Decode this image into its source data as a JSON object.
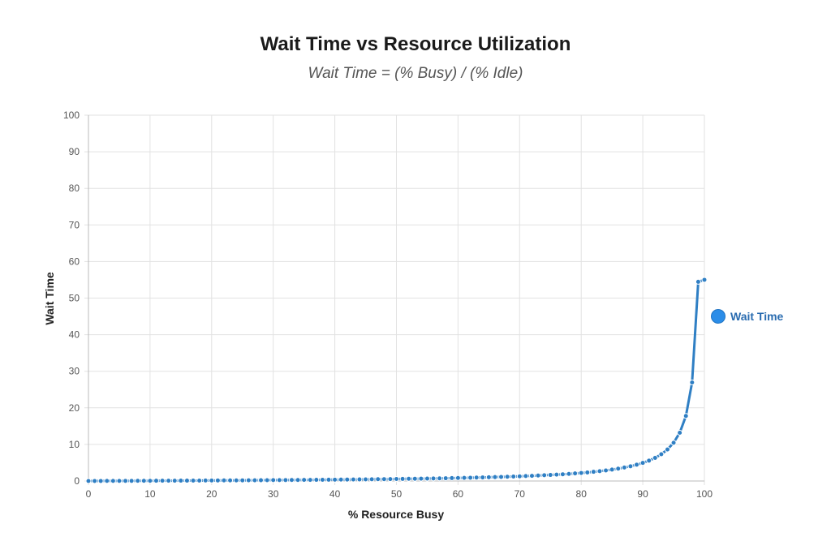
{
  "chart_data": {
    "type": "line",
    "title": "Wait Time vs Resource Utilization",
    "subtitle": "Wait Time = (% Busy) / (% Idle)",
    "xlabel": "% Resource Busy",
    "ylabel": "Wait Time",
    "xlim": [
      0,
      100
    ],
    "ylim": [
      0,
      100
    ],
    "xticks": [
      0,
      10,
      20,
      30,
      40,
      50,
      60,
      70,
      80,
      90,
      100
    ],
    "yticks": [
      0,
      10,
      20,
      30,
      40,
      50,
      60,
      70,
      80,
      90,
      100
    ],
    "grid": true,
    "legend_position": "right",
    "series": [
      {
        "name": "Wait Time",
        "color": "#2f7fc4",
        "legend_color": "#2b8de8",
        "x": [
          0,
          1,
          2,
          3,
          4,
          5,
          6,
          7,
          8,
          9,
          10,
          11,
          12,
          13,
          14,
          15,
          16,
          17,
          18,
          19,
          20,
          21,
          22,
          23,
          24,
          25,
          26,
          27,
          28,
          29,
          30,
          31,
          32,
          33,
          34,
          35,
          36,
          37,
          38,
          39,
          40,
          41,
          42,
          43,
          44,
          45,
          46,
          47,
          48,
          49,
          50,
          51,
          52,
          53,
          54,
          55,
          56,
          57,
          58,
          59,
          60,
          61,
          62,
          63,
          64,
          65,
          66,
          67,
          68,
          69,
          70,
          71,
          72,
          73,
          74,
          75,
          76,
          77,
          78,
          79,
          80,
          81,
          82,
          83,
          84,
          85,
          86,
          87,
          88,
          89,
          90,
          91,
          92,
          93,
          94,
          95,
          96,
          97,
          98,
          99,
          100
        ],
        "y": [
          0,
          0.01,
          0.01,
          0.02,
          0.02,
          0.03,
          0.04,
          0.04,
          0.05,
          0.05,
          0.06,
          0.07,
          0.08,
          0.08,
          0.09,
          0.1,
          0.1,
          0.11,
          0.12,
          0.13,
          0.14,
          0.15,
          0.16,
          0.16,
          0.17,
          0.18,
          0.19,
          0.2,
          0.21,
          0.22,
          0.24,
          0.25,
          0.26,
          0.27,
          0.28,
          0.3,
          0.31,
          0.32,
          0.34,
          0.35,
          0.37,
          0.38,
          0.4,
          0.41,
          0.43,
          0.45,
          0.47,
          0.49,
          0.51,
          0.53,
          0.55,
          0.57,
          0.6,
          0.62,
          0.65,
          0.67,
          0.7,
          0.73,
          0.76,
          0.79,
          0.83,
          0.86,
          0.9,
          0.94,
          0.98,
          1.02,
          1.07,
          1.12,
          1.17,
          1.22,
          1.28,
          1.35,
          1.41,
          1.49,
          1.57,
          1.65,
          1.74,
          1.84,
          1.95,
          2.07,
          2.2,
          2.34,
          2.51,
          2.69,
          2.89,
          3.12,
          3.38,
          3.68,
          4.03,
          4.45,
          4.95,
          5.56,
          6.33,
          7.31,
          8.62,
          10.45,
          13.2,
          17.78,
          26.95,
          54.45,
          55
        ]
      }
    ]
  }
}
